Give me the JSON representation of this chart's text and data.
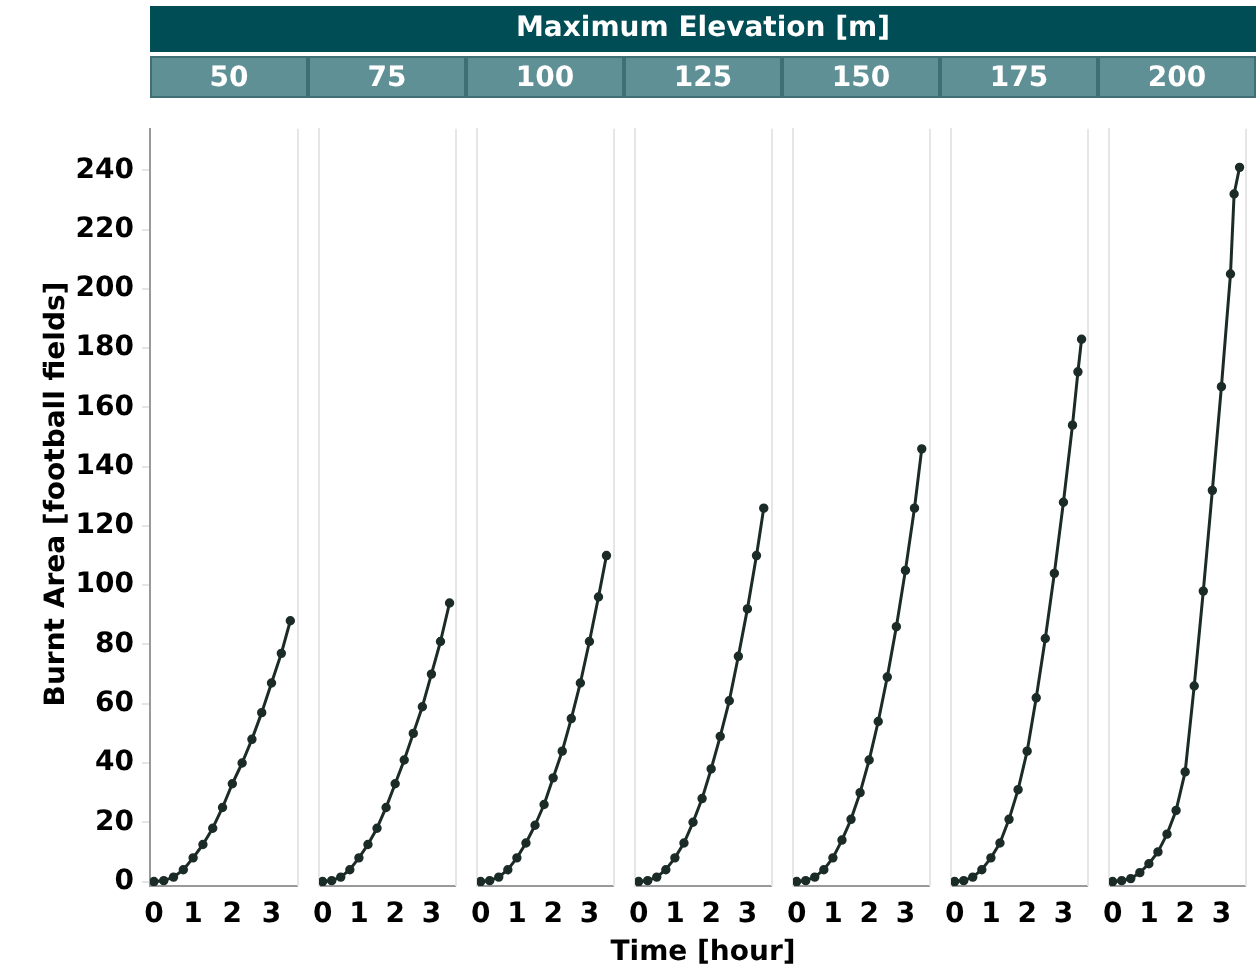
{
  "chart_data": [
    {
      "type": "line",
      "title": "50",
      "annotations": [
        "Maximum Elevation [m]"
      ],
      "ylabel": "Burnt Area [football fields]",
      "marker": "circle",
      "line_style": "solid",
      "grid": false,
      "legend": false,
      "xlim": [
        -0.1,
        3.65
      ],
      "xticks": [
        0,
        1,
        2,
        3
      ],
      "ylim": [
        -1.5,
        254
      ],
      "yticks": [
        0,
        20,
        40,
        60,
        80,
        100,
        120,
        140,
        160,
        180,
        200,
        220,
        240
      ],
      "series": [
        {
          "color": "#1b2b27",
          "x": [
            0,
            0.25,
            0.5,
            0.75,
            1,
            1.25,
            1.5,
            1.75,
            2,
            2.25,
            2.5,
            2.75,
            3,
            3.25,
            3.48
          ],
          "values": [
            0,
            0.3,
            1.5,
            4,
            8,
            12.5,
            18,
            25,
            33,
            40,
            48,
            57,
            67,
            77,
            88
          ]
        }
      ]
    },
    {
      "type": "line",
      "title": "75",
      "marker": "circle",
      "line_style": "solid",
      "grid": false,
      "legend": false,
      "tick_labels": "x",
      "xlim": [
        -0.1,
        3.65
      ],
      "xticks": [
        0,
        1,
        2,
        3
      ],
      "ylim": [
        -1.5,
        254
      ],
      "series": [
        {
          "color": "#1b2b27",
          "x": [
            0,
            0.25,
            0.5,
            0.75,
            1,
            1.25,
            1.5,
            1.75,
            2,
            2.25,
            2.5,
            2.75,
            3,
            3.25,
            3.5
          ],
          "values": [
            0,
            0.3,
            1.5,
            4,
            8,
            12.5,
            18,
            25,
            33,
            41,
            50,
            59,
            70,
            81,
            94
          ]
        }
      ]
    },
    {
      "type": "line",
      "title": "100",
      "marker": "circle",
      "line_style": "solid",
      "grid": false,
      "legend": false,
      "tick_labels": "x",
      "xlim": [
        -0.1,
        3.65
      ],
      "xticks": [
        0,
        1,
        2,
        3
      ],
      "ylim": [
        -1.5,
        254
      ],
      "series": [
        {
          "color": "#1b2b27",
          "x": [
            0,
            0.25,
            0.5,
            0.75,
            1,
            1.25,
            1.5,
            1.75,
            2,
            2.25,
            2.5,
            2.75,
            3,
            3.25,
            3.47
          ],
          "values": [
            0,
            0.3,
            1.5,
            4,
            8,
            13,
            19,
            26,
            35,
            44,
            55,
            67,
            81,
            96,
            110
          ]
        }
      ]
    },
    {
      "type": "line",
      "title": "125",
      "xlabel": "Time [hour]",
      "marker": "circle",
      "line_style": "solid",
      "grid": false,
      "legend": false,
      "tick_labels": "x",
      "xlim": [
        -0.1,
        3.65
      ],
      "xticks": [
        0,
        1,
        2,
        3
      ],
      "ylim": [
        -1.5,
        254
      ],
      "series": [
        {
          "color": "#1b2b27",
          "x": [
            0,
            0.25,
            0.5,
            0.75,
            1,
            1.25,
            1.5,
            1.75,
            2,
            2.25,
            2.5,
            2.75,
            3,
            3.25,
            3.45
          ],
          "values": [
            0,
            0.3,
            1.5,
            4,
            8,
            13,
            20,
            28,
            38,
            49,
            61,
            76,
            92,
            110,
            126
          ]
        }
      ]
    },
    {
      "type": "line",
      "title": "150",
      "marker": "circle",
      "line_style": "solid",
      "grid": false,
      "legend": false,
      "tick_labels": "x",
      "xlim": [
        -0.1,
        3.65
      ],
      "xticks": [
        0,
        1,
        2,
        3
      ],
      "ylim": [
        -1.5,
        254
      ],
      "series": [
        {
          "color": "#1b2b27",
          "x": [
            0,
            0.25,
            0.5,
            0.75,
            1,
            1.25,
            1.5,
            1.75,
            2,
            2.25,
            2.5,
            2.75,
            3,
            3.25,
            3.45
          ],
          "values": [
            0,
            0.3,
            1.5,
            4,
            8,
            14,
            21,
            30,
            41,
            54,
            69,
            86,
            105,
            126,
            146
          ]
        }
      ]
    },
    {
      "type": "line",
      "title": "175",
      "marker": "circle",
      "line_style": "solid",
      "grid": false,
      "legend": false,
      "tick_labels": "x",
      "xlim": [
        -0.1,
        3.65
      ],
      "xticks": [
        0,
        1,
        2,
        3
      ],
      "ylim": [
        -1.5,
        254
      ],
      "series": [
        {
          "color": "#1b2b27",
          "x": [
            0,
            0.25,
            0.5,
            0.75,
            1,
            1.25,
            1.5,
            1.75,
            2,
            2.25,
            2.5,
            2.75,
            3,
            3.25,
            3.4,
            3.5
          ],
          "values": [
            0,
            0.3,
            1.5,
            4,
            8,
            13,
            21,
            31,
            44,
            62,
            82,
            104,
            128,
            154,
            172,
            183
          ]
        }
      ]
    },
    {
      "type": "line",
      "title": "200",
      "marker": "circle",
      "line_style": "solid",
      "grid": false,
      "legend": false,
      "tick_labels": "x",
      "xlim": [
        -0.1,
        3.65
      ],
      "xticks": [
        0,
        1,
        2,
        3
      ],
      "ylim": [
        -1.5,
        254
      ],
      "series": [
        {
          "color": "#1b2b27",
          "x": [
            0,
            0.25,
            0.5,
            0.75,
            1,
            1.25,
            1.5,
            1.75,
            2,
            2.25,
            2.5,
            2.75,
            3,
            3.25,
            3.35,
            3.5
          ],
          "values": [
            0,
            0.3,
            1,
            3,
            6,
            10,
            16,
            24,
            37,
            66,
            98,
            132,
            167,
            205,
            232,
            241
          ]
        }
      ]
    }
  ]
}
